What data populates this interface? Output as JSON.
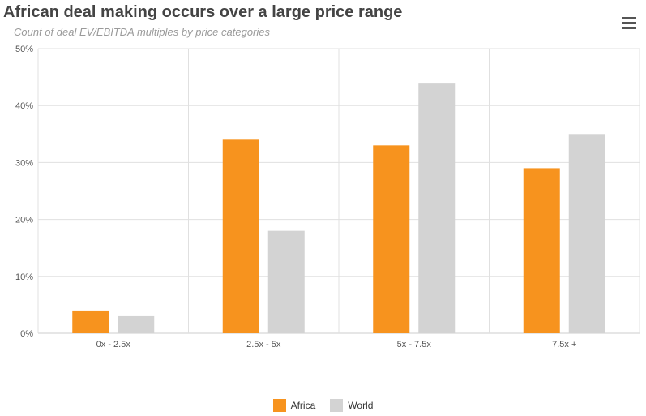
{
  "title": "African deal making occurs over a large price range",
  "subtitle": "Count of deal EV/EBITDA multiples by price categories",
  "menu_icon": "hamburger-menu-icon",
  "chart_data": {
    "type": "bar",
    "categories": [
      "0x - 2.5x",
      "2.5x - 5x",
      "5x - 7.5x",
      "7.5x +"
    ],
    "series": [
      {
        "name": "Africa",
        "color": "#f7931e",
        "values": [
          4,
          34,
          33,
          29
        ]
      },
      {
        "name": "World",
        "color": "#d3d3d3",
        "values": [
          3,
          18,
          44,
          35
        ]
      }
    ],
    "title": "African deal making occurs over a large price range",
    "subtitle": "Count of deal EV/EBITDA multiples by price categories",
    "ylim": [
      0,
      50
    ],
    "yticks": [
      0,
      10,
      20,
      30,
      40,
      50
    ],
    "ytick_labels": [
      "0%",
      "10%",
      "20%",
      "30%",
      "40%",
      "50%"
    ],
    "grid": true,
    "legend_position": "bottom-center"
  }
}
